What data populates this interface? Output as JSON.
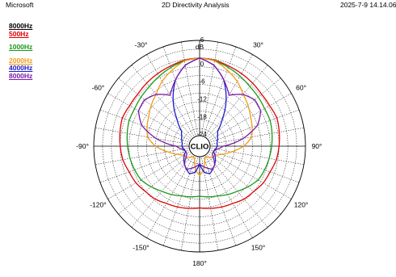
{
  "header": {
    "brand": "Microsoft",
    "title": "2D Directivity Analysis",
    "datetime": "2025-7-9 14.14.06"
  },
  "chart_data": {
    "type": "polar-line",
    "title": "2D Directivity Analysis",
    "radial_unit_label": "dB",
    "radial_ticks": [
      6,
      0,
      -6,
      -12,
      -18,
      -24
    ],
    "radial_range": [
      -30,
      6
    ],
    "angle_ticks": [
      {
        "deg": -30,
        "label": "-30°"
      },
      {
        "deg": 30,
        "label": "30°"
      },
      {
        "deg": -60,
        "label": "-60°"
      },
      {
        "deg": 60,
        "label": "60°"
      },
      {
        "deg": -90,
        "label": "-90°"
      },
      {
        "deg": 90,
        "label": "90°"
      },
      {
        "deg": -120,
        "label": "-120°"
      },
      {
        "deg": 120,
        "label": "120°"
      },
      {
        "deg": -150,
        "label": "-150°"
      },
      {
        "deg": 150,
        "label": "150°"
      },
      {
        "deg": 180,
        "label": "180°"
      }
    ],
    "center_label": "CLIO",
    "grid": true,
    "legend_position": "top-left",
    "angles_deg": [
      0,
      10,
      20,
      30,
      40,
      50,
      60,
      70,
      80,
      90,
      100,
      110,
      120,
      130,
      140,
      150,
      160,
      170,
      180,
      190,
      200,
      210,
      220,
      230,
      240,
      250,
      260,
      270,
      280,
      290,
      300,
      310,
      320,
      330,
      340,
      350
    ],
    "series": [
      {
        "name": "8000Hz",
        "color": "#000000",
        "draw": false,
        "values": [
          0,
          -0.3,
          -1,
          -1.5,
          -2,
          -2.5,
          -2.5,
          -2,
          -2.5,
          -3,
          -3.5,
          -4.5,
          -5,
          -6,
          -6.5,
          -7.5,
          -8,
          -8.5,
          -9,
          -8.5,
          -8,
          -7.5,
          -6.5,
          -6,
          -5,
          -4.5,
          -3.5,
          -3,
          -2.5,
          -2,
          -2.5,
          -2.5,
          -2,
          -1.5,
          -1,
          -0.3
        ]
      },
      {
        "name": "500Hz",
        "color": "#e00000",
        "draw": true,
        "values": [
          0,
          -0.3,
          -1,
          -1.5,
          -2,
          -2.5,
          -2.5,
          -2,
          -2.5,
          -3,
          -3.5,
          -4.5,
          -5,
          -6,
          -6.5,
          -7.5,
          -8,
          -8.5,
          -9,
          -8.5,
          -8,
          -7.5,
          -6.5,
          -6,
          -5,
          -4.5,
          -3.5,
          -3,
          -2.5,
          -2,
          -2.5,
          -2.5,
          -2,
          -1.5,
          -1,
          -0.3
        ]
      },
      {
        "name": "1000Hz",
        "color": "#1a9a1a",
        "draw": true,
        "values": [
          0,
          -0.5,
          -1.5,
          -2.5,
          -3.5,
          -4,
          -4.5,
          -4.5,
          -5,
          -5.5,
          -6,
          -6.5,
          -7,
          -8.5,
          -10,
          -11,
          -12,
          -12.5,
          -13,
          -12.5,
          -12,
          -11,
          -10,
          -8.5,
          -7,
          -6.5,
          -6,
          -5.5,
          -5,
          -4.5,
          -4.5,
          -4,
          -3.5,
          -2.5,
          -1.5,
          -0.5
        ]
      },
      {
        "name": "2000Hz",
        "color": "#f39b12",
        "draw": true,
        "values": [
          0,
          -0.5,
          -2.5,
          -4.5,
          -7,
          -8.5,
          -10,
          -11,
          -12,
          -15,
          -19,
          -22,
          -24,
          -24,
          -25,
          -26,
          -25,
          -22,
          -20,
          -22,
          -25,
          -26,
          -25,
          -24,
          -24,
          -22,
          -19,
          -15,
          -12,
          -11,
          -10,
          -8.5,
          -7,
          -4.5,
          -2.5,
          -0.5
        ]
      },
      {
        "name": "4000Hz",
        "color": "#1a1acc",
        "draw": true,
        "values": [
          0,
          -2,
          -6,
          -12,
          -18,
          -22,
          -23,
          -23.5,
          -24,
          -24,
          -24.5,
          -25,
          -24,
          -23,
          -22,
          -21,
          -20,
          -21,
          -24,
          -21,
          -20,
          -21,
          -22,
          -23,
          -24,
          -25,
          -24.5,
          -24,
          -24,
          -23.5,
          -23,
          -22,
          -18,
          -12,
          -6,
          -2
        ]
      },
      {
        "name": "8000Hz",
        "color": "#7a1aa8",
        "draw": true,
        "values": [
          0,
          -2,
          -6,
          -10,
          -7,
          -5.5,
          -6,
          -9,
          -15,
          -22,
          -24,
          -25,
          -25,
          -24,
          -22,
          -21,
          -22,
          -23,
          -24,
          -23,
          -22,
          -21,
          -22,
          -24,
          -25,
          -25,
          -24,
          -22,
          -15,
          -9,
          -6,
          -5.5,
          -7,
          -10,
          -6,
          -2
        ]
      }
    ]
  }
}
